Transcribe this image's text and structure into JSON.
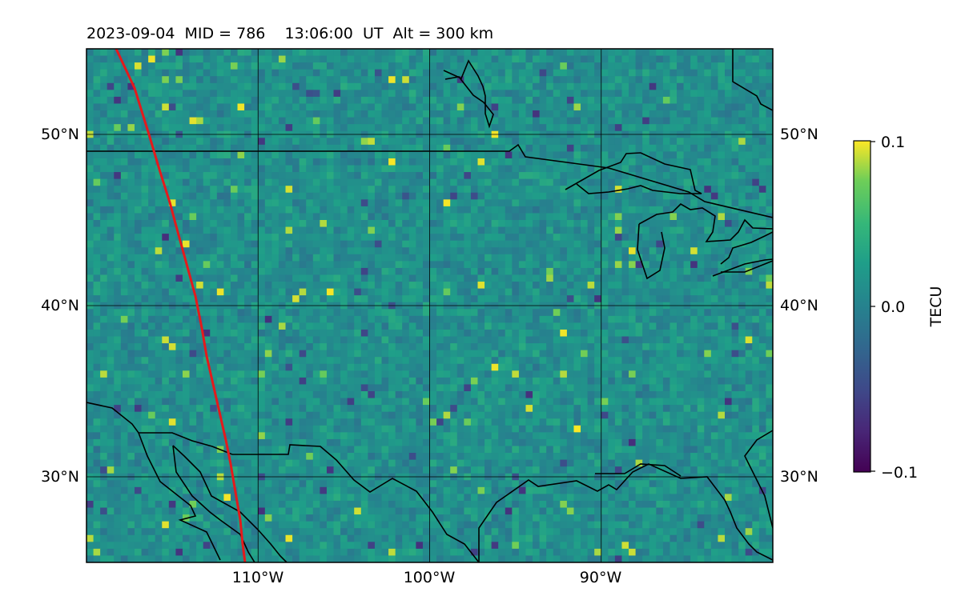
{
  "title": "2023-09-04  MID = 786    13:06:00  UT  Alt = 300 km",
  "map": {
    "lon_range": [
      -120,
      -80
    ],
    "lat_range": [
      25,
      55
    ],
    "lon_ticks": [
      {
        "value": -110,
        "label": "110°W"
      },
      {
        "value": -100,
        "label": "100°W"
      },
      {
        "value": -90,
        "label": "90°W"
      }
    ],
    "lat_ticks": [
      {
        "value": 50,
        "label": "50°N"
      },
      {
        "value": 40,
        "label": "40°N"
      },
      {
        "value": 30,
        "label": "30°N"
      }
    ],
    "gridlines": true,
    "track_color": "#e41a1c"
  },
  "colorbar": {
    "label": "TECU",
    "colormap": "viridis",
    "ticks": [
      {
        "value": 0.1,
        "label": "0.1"
      },
      {
        "value": 0.0,
        "label": "0.0"
      },
      {
        "value": -0.1,
        "label": "−0.1"
      }
    ],
    "range": [
      -0.1,
      0.1
    ]
  }
}
